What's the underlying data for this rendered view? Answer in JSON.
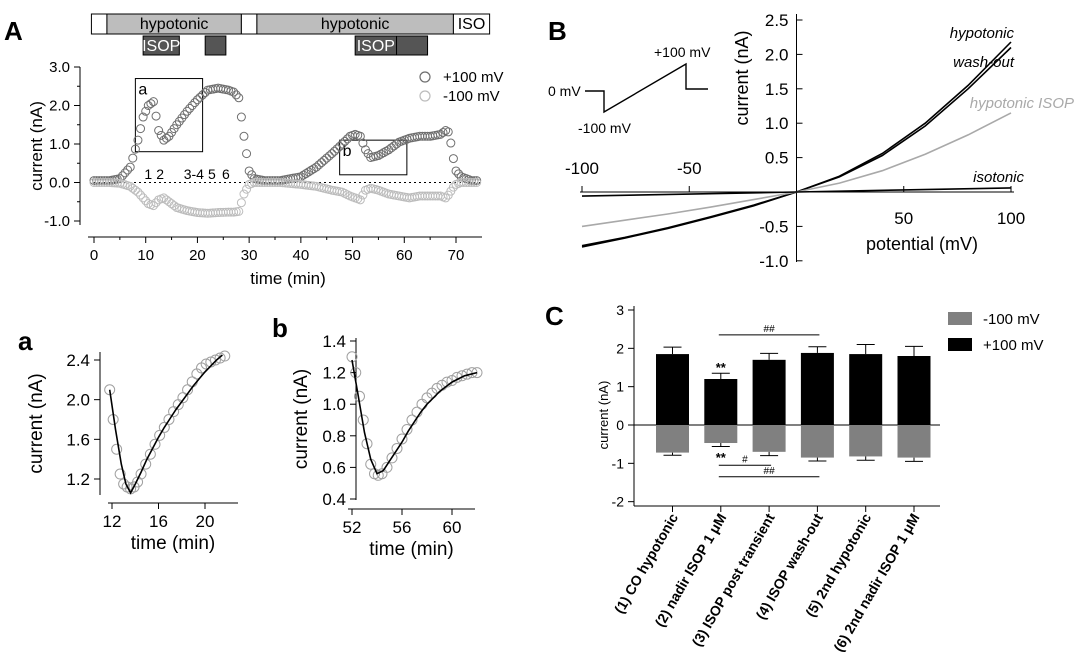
{
  "panel_labels": {
    "A": "A",
    "B": "B",
    "C": "C",
    "a": "a",
    "b": "b"
  },
  "panelA": {
    "protocol": {
      "row1": [
        {
          "label": "",
          "start": -0.5,
          "end": 2.5,
          "fill": "#ffffff"
        },
        {
          "label": "hypotonic",
          "start": 2.5,
          "end": 28.5,
          "fill": "#bdbdbd"
        },
        {
          "label": "",
          "start": 28.5,
          "end": 31.5,
          "fill": "#ffffff"
        },
        {
          "label": "hypotonic",
          "start": 31.5,
          "end": 69.5,
          "fill": "#bdbdbd"
        },
        {
          "label": "ISO",
          "start": 69.5,
          "end": 76.5,
          "fill": "#ffffff"
        }
      ],
      "row2": [
        {
          "label": "ISOP",
          "start": 9.5,
          "end": 16.5,
          "fill": "#555555"
        },
        {
          "label": "",
          "start": 21.5,
          "end": 25.5,
          "fill": "#555555"
        },
        {
          "label": "ISOP",
          "start": 50.5,
          "end": 58.5,
          "fill": "#555555"
        },
        {
          "label": "",
          "start": 58.5,
          "end": 64.5,
          "fill": "#555555"
        }
      ]
    },
    "zoom_boxes": [
      {
        "label": "a",
        "x": [
          8,
          21
        ],
        "y": [
          0.8,
          2.7
        ]
      },
      {
        "label": "b",
        "x": [
          47.5,
          60.5
        ],
        "y": [
          0.2,
          1.1
        ]
      }
    ],
    "point_labels": [
      {
        "text": "1",
        "x": 10.5
      },
      {
        "text": "2",
        "x": 12.8
      },
      {
        "text": "3-4",
        "x": 19.3
      },
      {
        "text": "5",
        "x": 22.8
      },
      {
        "text": "6",
        "x": 25.5
      }
    ]
  },
  "panelB": {
    "inset": {
      "label_0mv": "0 mV",
      "label_m100": "-100 mV",
      "label_p100": "+100 mV"
    }
  },
  "chart_data": [
    {
      "id": "A",
      "type": "scatter",
      "xlabel": "time (min)",
      "ylabel": "current (nA)",
      "xlim": [
        -1,
        76
      ],
      "ylim": [
        -1.25,
        3.05
      ],
      "xticks": [
        0,
        10,
        20,
        30,
        40,
        50,
        60,
        70
      ],
      "yticks": [
        -1.0,
        0.0,
        1.0,
        2.0,
        3.0
      ],
      "ytick_labels": [
        "-1.0",
        "0.0",
        "1.0",
        "2.0",
        "3.0"
      ],
      "zero_line": "dotted",
      "legend": "top-right",
      "series": [
        {
          "name": "+100 mV",
          "color": "#6e6e6e",
          "x": [
            0,
            3,
            5,
            7,
            8.5,
            9.5,
            10.5,
            11.5,
            12.5,
            13.5,
            14.5,
            16,
            18,
            20,
            22,
            24,
            26,
            27,
            28,
            29,
            30,
            31,
            33,
            36,
            40,
            43,
            46,
            48,
            49.5,
            50.5,
            51.5,
            52.5,
            53.5,
            55,
            57,
            59,
            61,
            63,
            65,
            67,
            68,
            68.7,
            69.3,
            70,
            71,
            72,
            73,
            74
          ],
          "y": [
            0.05,
            0.05,
            0.1,
            0.4,
            1.1,
            1.7,
            2.0,
            2.1,
            1.35,
            1.1,
            1.2,
            1.5,
            1.85,
            2.15,
            2.4,
            2.45,
            2.4,
            2.35,
            2.2,
            1.2,
            0.3,
            0.1,
            0.05,
            0.05,
            0.15,
            0.4,
            0.75,
            1.0,
            1.2,
            1.25,
            1.2,
            0.85,
            0.65,
            0.7,
            0.85,
            1.05,
            1.15,
            1.2,
            1.2,
            1.25,
            1.35,
            1.3,
            0.75,
            0.3,
            0.15,
            0.1,
            0.05,
            0.05
          ]
        },
        {
          "name": "-100 mV",
          "color": "#bcbcbc",
          "x": [
            0,
            3,
            5,
            7,
            8.5,
            9.5,
            10.5,
            11.5,
            12.5,
            13.5,
            14.5,
            16,
            18,
            20,
            22,
            24,
            26,
            27,
            28,
            29,
            30,
            31,
            33,
            36,
            40,
            43,
            46,
            48,
            49.5,
            50.5,
            51.5,
            52.5,
            53.5,
            55,
            57,
            59,
            61,
            63,
            65,
            67,
            68,
            68.7,
            69.3,
            70,
            71,
            72,
            73,
            74
          ],
          "y": [
            0,
            0,
            -0.02,
            -0.1,
            -0.25,
            -0.4,
            -0.55,
            -0.6,
            -0.45,
            -0.4,
            -0.5,
            -0.65,
            -0.73,
            -0.78,
            -0.8,
            -0.78,
            -0.77,
            -0.77,
            -0.75,
            -0.3,
            -0.05,
            0,
            0,
            0,
            -0.05,
            -0.1,
            -0.2,
            -0.25,
            -0.35,
            -0.4,
            -0.45,
            -0.2,
            -0.15,
            -0.2,
            -0.3,
            -0.35,
            -0.4,
            -0.35,
            -0.35,
            -0.35,
            -0.4,
            -0.3,
            -0.15,
            -0.05,
            0,
            0,
            0,
            0
          ]
        }
      ]
    },
    {
      "id": "a",
      "type": "scatter",
      "xlabel": "time (min)",
      "ylabel": "current (nA)",
      "xlim": [
        11,
        22.5
      ],
      "ylim": [
        0.95,
        2.55
      ],
      "xticks": [
        12,
        16,
        20
      ],
      "yticks": [
        1.2,
        1.6,
        2.0,
        2.4
      ],
      "ytick_labels": [
        "1.2",
        "1.6",
        "2.0",
        "2.4"
      ],
      "series": [
        {
          "name": "",
          "color": "#a0a0a0",
          "x": [
            11.8,
            12.1,
            12.4,
            12.7,
            13.0,
            13.3,
            13.6,
            13.9,
            14.2,
            14.5,
            14.9,
            15.3,
            15.7,
            16.1,
            16.5,
            16.9,
            17.3,
            17.7,
            18.1,
            18.5,
            18.9,
            19.3,
            19.7,
            20.1,
            20.5,
            20.9,
            21.3,
            21.7
          ],
          "y": [
            2.1,
            1.8,
            1.5,
            1.25,
            1.15,
            1.12,
            1.1,
            1.12,
            1.17,
            1.25,
            1.35,
            1.45,
            1.55,
            1.64,
            1.72,
            1.8,
            1.88,
            1.95,
            2.02,
            2.1,
            2.18,
            2.26,
            2.32,
            2.36,
            2.38,
            2.4,
            2.42,
            2.44
          ]
        }
      ],
      "fit": {
        "color": "#000000",
        "x": [
          11.8,
          12.3,
          12.8,
          13.2,
          13.6,
          14.0,
          14.5,
          15.0,
          15.5,
          16.0,
          16.5,
          17.0,
          17.5,
          18.0,
          18.5,
          19.0,
          19.5,
          20.0,
          20.5,
          21.0,
          21.5
        ],
        "y": [
          2.1,
          1.7,
          1.35,
          1.15,
          1.06,
          1.15,
          1.27,
          1.4,
          1.51,
          1.62,
          1.72,
          1.81,
          1.9,
          1.98,
          2.06,
          2.14,
          2.21,
          2.28,
          2.34,
          2.4,
          2.45
        ]
      }
    },
    {
      "id": "b",
      "type": "scatter",
      "xlabel": "time (min)",
      "ylabel": "current (nA)",
      "xlim": [
        51.2,
        62.8
      ],
      "ylim": [
        0.42,
        1.42
      ],
      "xticks": [
        52,
        56,
        60
      ],
      "yticks": [
        0.4,
        0.6,
        0.8,
        1.0,
        1.2,
        1.4
      ],
      "ytick_labels": [
        "0.4",
        "0.6",
        "0.8",
        "1.0",
        "1.2",
        "1.4"
      ],
      "series": [
        {
          "name": "",
          "color": "#a0a0a0",
          "x": [
            52.0,
            52.3,
            52.6,
            52.9,
            53.2,
            53.5,
            53.8,
            54.1,
            54.4,
            54.8,
            55.2,
            55.6,
            56.0,
            56.4,
            56.8,
            57.2,
            57.6,
            58.0,
            58.4,
            58.8,
            59.2,
            59.6,
            60.0,
            60.4,
            60.8,
            61.2,
            61.6,
            62.0
          ],
          "y": [
            1.3,
            1.2,
            1.05,
            0.9,
            0.75,
            0.62,
            0.56,
            0.55,
            0.56,
            0.6,
            0.66,
            0.72,
            0.78,
            0.84,
            0.9,
            0.95,
            1.0,
            1.04,
            1.07,
            1.1,
            1.12,
            1.14,
            1.15,
            1.17,
            1.18,
            1.19,
            1.2,
            1.2
          ]
        }
      ],
      "fit": {
        "color": "#000000",
        "x": [
          52.0,
          52.5,
          53.0,
          53.5,
          54.0,
          54.5,
          55.0,
          55.5,
          56.0,
          56.5,
          57.0,
          57.5,
          58.0,
          58.5,
          59.0,
          59.5,
          60.0,
          60.5,
          61.0,
          61.5,
          62.0
        ],
        "y": [
          1.28,
          1.05,
          0.82,
          0.65,
          0.56,
          0.58,
          0.64,
          0.7,
          0.76,
          0.83,
          0.89,
          0.95,
          1.0,
          1.04,
          1.08,
          1.11,
          1.14,
          1.16,
          1.18,
          1.19,
          1.2
        ]
      }
    },
    {
      "id": "B",
      "type": "line",
      "xlabel": "potential (mV)",
      "ylabel": "current (nA)",
      "xlim": [
        -100,
        100
      ],
      "ylim": [
        -1.0,
        2.5
      ],
      "xticks": [
        -100,
        -50,
        50,
        100
      ],
      "yticks": [
        -1.0,
        -0.5,
        0.5,
        1.0,
        1.5,
        2.0,
        2.5
      ],
      "ytick_labels": [
        "-1.0",
        "-0.5",
        "0.5",
        "1.0",
        "1.5",
        "2.0",
        "2.5"
      ],
      "series": [
        {
          "name": "hypotonic",
          "color": "#000000",
          "x": [
            -100,
            -80,
            -60,
            -40,
            -20,
            0,
            20,
            40,
            60,
            80,
            100
          ],
          "y": [
            -0.78,
            -0.66,
            -0.52,
            -0.36,
            -0.19,
            0,
            0.23,
            0.56,
            1.0,
            1.55,
            2.18
          ]
        },
        {
          "name": "wash-out",
          "color": "#000000",
          "x": [
            -100,
            -80,
            -60,
            -40,
            -20,
            0,
            20,
            40,
            60,
            80,
            100
          ],
          "y": [
            -0.8,
            -0.67,
            -0.53,
            -0.37,
            -0.2,
            0,
            0.22,
            0.53,
            0.96,
            1.5,
            2.1
          ]
        },
        {
          "name": "hypotonic ISOP",
          "color": "#a9a9a9",
          "x": [
            -100,
            -80,
            -60,
            -40,
            -20,
            0,
            20,
            40,
            60,
            80,
            100
          ],
          "y": [
            -0.5,
            -0.41,
            -0.32,
            -0.22,
            -0.11,
            0,
            0.13,
            0.31,
            0.55,
            0.83,
            1.15
          ]
        },
        {
          "name": "isotonic",
          "color": "#000000",
          "x": [
            -100,
            -50,
            0,
            50,
            100
          ],
          "y": [
            -0.06,
            -0.03,
            0,
            0.03,
            0.06
          ]
        }
      ]
    },
    {
      "id": "C",
      "type": "bar",
      "ylabel": "current (nA)",
      "ylim": [
        -2,
        3
      ],
      "yticks": [
        -2,
        -1,
        0,
        1,
        2,
        3
      ],
      "ytick_labels": [
        "-2",
        "-1",
        "0",
        "1",
        "2",
        "3"
      ],
      "categories": [
        "(1) CO hypotonic",
        "(2) nadir ISOP 1 μM",
        "(3) ISOP post transient",
        "(4) ISOP wash-out",
        "(5) 2nd hypotonic",
        "(6) 2nd nadir ISOP 1 μM"
      ],
      "legend": "top-right",
      "series": [
        {
          "name": "-100 mV",
          "color": "#808080",
          "values": [
            -0.72,
            -0.47,
            -0.7,
            -0.85,
            -0.82,
            -0.85
          ],
          "errors": [
            0.07,
            0.09,
            0.1,
            0.09,
            0.1,
            0.1
          ]
        },
        {
          "name": "+100 mV",
          "color": "#000000",
          "values": [
            1.85,
            1.2,
            1.7,
            1.88,
            1.85,
            1.8
          ],
          "errors": [
            0.18,
            0.15,
            0.17,
            0.16,
            0.25,
            0.25
          ]
        }
      ],
      "annotations": [
        {
          "text": "**",
          "cat": 1,
          "side": "top"
        },
        {
          "text": "**",
          "cat": 1,
          "side": "bottom"
        },
        {
          "text": "##",
          "from": 1,
          "to": 3,
          "y": 2.35
        },
        {
          "text": "#",
          "from": 1,
          "to": 2,
          "y": -1.05
        },
        {
          "text": "##",
          "from": 1,
          "to": 3,
          "y": -1.35
        }
      ]
    }
  ]
}
